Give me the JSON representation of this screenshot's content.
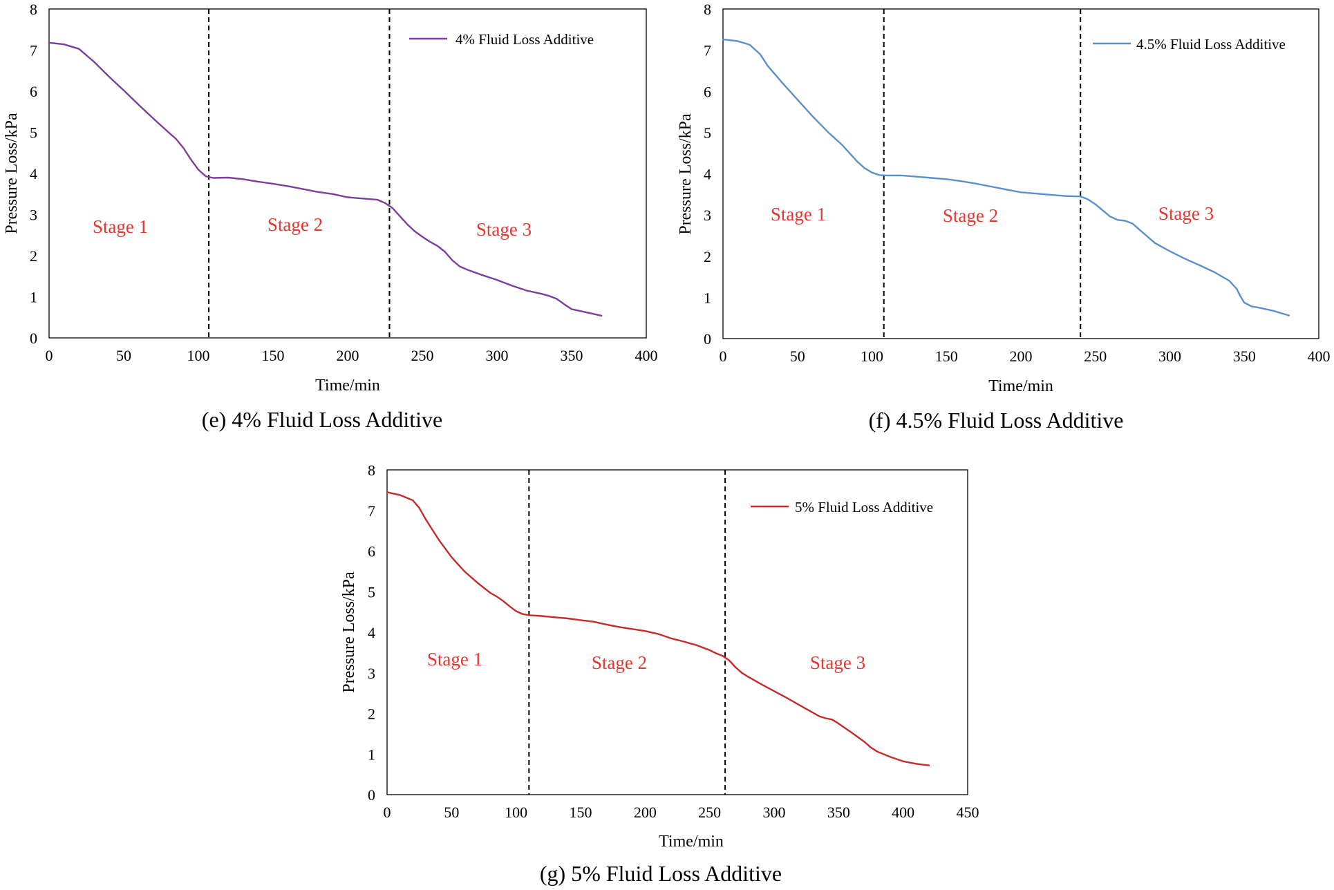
{
  "figure": {
    "charts": [
      {
        "caption": "(e) 4% Fluid Loss Additive",
        "legend": "4% Fluid Loss Additive",
        "color": "#7a3e9d",
        "stages": [
          "Stage 1",
          "Stage 2",
          "Stage 3"
        ]
      },
      {
        "caption": "(f) 4.5% Fluid Loss Additive",
        "legend": "4.5% Fluid Loss Additive",
        "color": "#5b8fcc",
        "stages": [
          "Stage 1",
          "Stage 2",
          "Stage 3"
        ]
      },
      {
        "caption": "(g) 5% Fluid Loss Additive",
        "legend": "5% Fluid Loss Additive",
        "color": "#c42b2b",
        "stages": [
          "Stage 1",
          "Stage 2",
          "Stage 3"
        ]
      }
    ]
  },
  "chart_data": [
    {
      "type": "line",
      "title": "(e) 4% Fluid Loss Additive",
      "xlabel": "Time/min",
      "ylabel": "Pressure Loss/kPa",
      "xlim": [
        0,
        400
      ],
      "ylim": [
        0,
        8
      ],
      "xticks": [
        0,
        50,
        100,
        150,
        200,
        250,
        300,
        350,
        400
      ],
      "yticks": [
        0,
        1,
        2,
        3,
        4,
        5,
        6,
        7,
        8
      ],
      "stage_boundaries": [
        107,
        228
      ],
      "stage_labels": [
        "Stage 1",
        "Stage 2",
        "Stage 3"
      ],
      "series": [
        {
          "name": "4% Fluid Loss Additive",
          "color": "#7a3e9d",
          "x": [
            0,
            10,
            20,
            30,
            40,
            50,
            60,
            70,
            80,
            85,
            90,
            95,
            100,
            105,
            110,
            120,
            130,
            140,
            150,
            160,
            170,
            180,
            190,
            200,
            210,
            220,
            225,
            230,
            235,
            240,
            245,
            250,
            255,
            260,
            265,
            270,
            275,
            280,
            290,
            300,
            310,
            320,
            330,
            335,
            340,
            345,
            350,
            360,
            370
          ],
          "y": [
            7.18,
            7.14,
            7.03,
            6.72,
            6.36,
            6.02,
            5.67,
            5.33,
            5.0,
            4.84,
            4.62,
            4.34,
            4.09,
            3.93,
            3.89,
            3.9,
            3.86,
            3.8,
            3.75,
            3.69,
            3.62,
            3.55,
            3.5,
            3.42,
            3.39,
            3.36,
            3.28,
            3.16,
            2.96,
            2.76,
            2.59,
            2.46,
            2.34,
            2.24,
            2.1,
            1.89,
            1.74,
            1.66,
            1.53,
            1.41,
            1.27,
            1.15,
            1.07,
            1.02,
            0.95,
            0.82,
            0.7,
            0.62,
            0.54
          ]
        }
      ]
    },
    {
      "type": "line",
      "title": "(f) 4.5% Fluid Loss Additive",
      "xlabel": "Time/min",
      "ylabel": "Pressure Loss/kPa",
      "xlim": [
        0,
        400
      ],
      "ylim": [
        0,
        8
      ],
      "xticks": [
        0,
        50,
        100,
        150,
        200,
        250,
        300,
        350,
        400
      ],
      "yticks": [
        0,
        1,
        2,
        3,
        4,
        5,
        6,
        7,
        8
      ],
      "stage_boundaries": [
        108,
        240
      ],
      "stage_labels": [
        "Stage 1",
        "Stage 2",
        "Stage 3"
      ],
      "series": [
        {
          "name": "4.5% Fluid Loss Additive",
          "color": "#5b8fcc",
          "x": [
            0,
            10,
            18,
            25,
            30,
            40,
            50,
            60,
            70,
            80,
            85,
            90,
            95,
            100,
            105,
            110,
            120,
            130,
            140,
            150,
            160,
            170,
            180,
            190,
            200,
            210,
            220,
            230,
            240,
            245,
            250,
            255,
            260,
            265,
            270,
            275,
            280,
            290,
            300,
            310,
            320,
            330,
            340,
            345,
            347,
            350,
            355,
            360,
            370,
            380
          ],
          "y": [
            7.26,
            7.22,
            7.13,
            6.9,
            6.62,
            6.2,
            5.8,
            5.4,
            5.03,
            4.7,
            4.5,
            4.3,
            4.14,
            4.03,
            3.97,
            3.96,
            3.96,
            3.93,
            3.9,
            3.87,
            3.82,
            3.76,
            3.69,
            3.62,
            3.55,
            3.52,
            3.49,
            3.46,
            3.45,
            3.38,
            3.26,
            3.11,
            2.96,
            2.88,
            2.86,
            2.79,
            2.63,
            2.32,
            2.12,
            1.94,
            1.78,
            1.61,
            1.4,
            1.2,
            1.05,
            0.87,
            0.78,
            0.75,
            0.67,
            0.56
          ]
        }
      ]
    },
    {
      "type": "line",
      "title": "(g) 5% Fluid Loss Additive",
      "xlabel": "Time/min",
      "ylabel": "Pressure Loss/kPa",
      "xlim": [
        0,
        450
      ],
      "ylim": [
        0,
        8
      ],
      "xticks": [
        0,
        50,
        100,
        150,
        200,
        250,
        300,
        350,
        400,
        450
      ],
      "yticks": [
        0,
        1,
        2,
        3,
        4,
        5,
        6,
        7,
        8
      ],
      "stage_boundaries": [
        110,
        262
      ],
      "stage_labels": [
        "Stage 1",
        "Stage 2",
        "Stage 3"
      ],
      "series": [
        {
          "name": "5% Fluid Loss Additive",
          "color": "#c42b2b",
          "x": [
            0,
            10,
            20,
            25,
            30,
            40,
            50,
            60,
            70,
            80,
            85,
            90,
            95,
            100,
            105,
            110,
            120,
            130,
            140,
            150,
            160,
            170,
            180,
            190,
            200,
            210,
            220,
            230,
            240,
            250,
            255,
            260,
            265,
            270,
            275,
            280,
            290,
            300,
            310,
            320,
            330,
            335,
            340,
            345,
            350,
            360,
            370,
            375,
            380,
            390,
            400,
            410,
            420
          ],
          "y": [
            7.45,
            7.38,
            7.25,
            7.06,
            6.78,
            6.28,
            5.85,
            5.5,
            5.22,
            4.97,
            4.88,
            4.77,
            4.64,
            4.52,
            4.45,
            4.42,
            4.4,
            4.37,
            4.34,
            4.3,
            4.26,
            4.19,
            4.13,
            4.08,
            4.03,
            3.96,
            3.85,
            3.77,
            3.68,
            3.56,
            3.48,
            3.42,
            3.31,
            3.14,
            3.0,
            2.9,
            2.72,
            2.55,
            2.38,
            2.2,
            2.02,
            1.93,
            1.88,
            1.85,
            1.75,
            1.53,
            1.3,
            1.16,
            1.06,
            0.93,
            0.82,
            0.76,
            0.72
          ]
        }
      ]
    }
  ]
}
